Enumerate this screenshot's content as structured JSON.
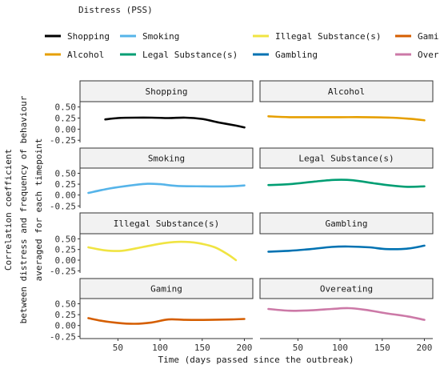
{
  "chart_data": {
    "type": "line",
    "legend_title": "Distress (PSS)",
    "legend_position": "top",
    "ylabel": [
      "Correlation coefficient",
      "between distress and frequency of behaviour",
      "averaged for each timepoint"
    ],
    "xlabel": "Time (days passed since the outbreak)",
    "xlim": [
      5,
      210
    ],
    "ylim": [
      -0.3,
      0.62
    ],
    "x_ticks": [
      50,
      100,
      150,
      200
    ],
    "y_ticks": [
      -0.25,
      0.0,
      0.25,
      0.5
    ],
    "x_tick_labels": [
      "50",
      "100",
      "150",
      "200"
    ],
    "y_tick_labels": [
      "-0.25",
      "0.00",
      "0.25",
      "0.50"
    ],
    "grid": false,
    "series": [
      {
        "name": "Shopping",
        "color": "#000000",
        "x": [
          35,
          50,
          70,
          90,
          110,
          130,
          150,
          170,
          190,
          200
        ],
        "y": [
          0.22,
          0.25,
          0.26,
          0.26,
          0.25,
          0.26,
          0.23,
          0.15,
          0.08,
          0.04
        ]
      },
      {
        "name": "Alcohol",
        "color": "#E69F00",
        "x": [
          15,
          40,
          70,
          100,
          130,
          160,
          185,
          200
        ],
        "y": [
          0.29,
          0.27,
          0.27,
          0.27,
          0.27,
          0.26,
          0.23,
          0.2
        ]
      },
      {
        "name": "Smoking",
        "color": "#56B4E9",
        "x": [
          15,
          40,
          65,
          85,
          100,
          120,
          150,
          180,
          200
        ],
        "y": [
          0.05,
          0.15,
          0.22,
          0.26,
          0.25,
          0.21,
          0.2,
          0.2,
          0.22
        ]
      },
      {
        "name": "Legal Substance(s)",
        "color": "#009E73",
        "x": [
          15,
          40,
          70,
          95,
          115,
          140,
          160,
          180,
          200
        ],
        "y": [
          0.23,
          0.25,
          0.31,
          0.35,
          0.34,
          0.27,
          0.22,
          0.19,
          0.2
        ]
      },
      {
        "name": "Illegal Substance(s)",
        "color": "#F0E442",
        "x": [
          15,
          35,
          55,
          80,
          105,
          125,
          145,
          165,
          180,
          190
        ],
        "y": [
          0.3,
          0.23,
          0.22,
          0.31,
          0.4,
          0.43,
          0.4,
          0.3,
          0.14,
          0.0
        ]
      },
      {
        "name": "Gambling",
        "color": "#0072B2",
        "x": [
          15,
          40,
          65,
          90,
          110,
          135,
          155,
          180,
          200
        ],
        "y": [
          0.2,
          0.22,
          0.26,
          0.31,
          0.32,
          0.3,
          0.26,
          0.27,
          0.34
        ]
      },
      {
        "name": "Gaming",
        "color": "#D55E00",
        "x": [
          15,
          30,
          50,
          70,
          90,
          110,
          130,
          160,
          185,
          200
        ],
        "y": [
          0.17,
          0.11,
          0.06,
          0.04,
          0.07,
          0.14,
          0.13,
          0.13,
          0.14,
          0.15
        ]
      },
      {
        "name": "Overeating",
        "color": "#CC79A7",
        "x": [
          15,
          40,
          65,
          90,
          110,
          130,
          155,
          180,
          200
        ],
        "y": [
          0.38,
          0.34,
          0.35,
          0.38,
          0.4,
          0.36,
          0.28,
          0.21,
          0.13
        ]
      }
    ],
    "legend_entries_shown": [
      "Shopping",
      "Smoking",
      "Illegal Substance(s)",
      "Gami",
      "Alcohol",
      "Legal Substance(s)",
      "Gambling",
      "Over"
    ]
  }
}
